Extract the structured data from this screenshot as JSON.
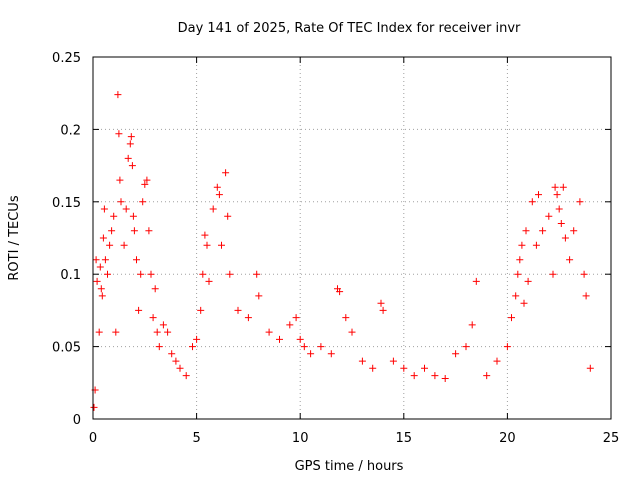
{
  "chart_data": {
    "type": "scatter",
    "title": "Day 141 of 2025, Rate Of TEC Index for receiver invr",
    "xlabel": "GPS time / hours",
    "ylabel": "ROTI / TECUs",
    "xlim": [
      0,
      25
    ],
    "ylim": [
      0,
      0.25
    ],
    "xticks": [
      "0",
      "5",
      "10",
      "15",
      "20",
      "25"
    ],
    "yticks": [
      "0",
      "0.05",
      "0.1",
      "0.15",
      "0.2",
      "0.25"
    ],
    "grid": true,
    "marker": "plus",
    "color": "#ff0000",
    "series": [
      {
        "name": "ROTI",
        "x": [
          0.05,
          0.1,
          0.15,
          0.2,
          0.3,
          0.35,
          0.4,
          0.45,
          0.5,
          0.55,
          0.6,
          0.7,
          0.8,
          0.9,
          1.0,
          1.1,
          1.2,
          1.25,
          1.3,
          1.35,
          1.5,
          1.6,
          1.7,
          1.8,
          1.85,
          1.9,
          1.95,
          2.0,
          2.1,
          2.2,
          2.3,
          2.4,
          2.5,
          2.6,
          2.7,
          2.8,
          2.9,
          3.0,
          3.1,
          3.2,
          3.4,
          3.6,
          3.8,
          4.0,
          4.2,
          4.5,
          4.8,
          5.0,
          5.2,
          5.3,
          5.4,
          5.5,
          5.6,
          5.8,
          6.0,
          6.1,
          6.2,
          6.4,
          6.5,
          6.6,
          7.0,
          7.5,
          7.9,
          8.0,
          8.5,
          9.0,
          9.5,
          9.8,
          10.0,
          10.2,
          10.5,
          11.0,
          11.5,
          11.8,
          11.9,
          12.2,
          12.5,
          13.0,
          13.5,
          13.9,
          14.0,
          14.5,
          15.0,
          15.5,
          16.0,
          16.5,
          17.0,
          17.5,
          18.0,
          18.3,
          18.5,
          19.0,
          19.5,
          20.0,
          20.2,
          20.4,
          20.5,
          20.6,
          20.7,
          20.8,
          20.9,
          21.0,
          21.2,
          21.4,
          21.5,
          21.7,
          22.0,
          22.2,
          22.3,
          22.4,
          22.5,
          22.6,
          22.7,
          22.8,
          23.0,
          23.2,
          23.5,
          23.7,
          23.8,
          24.0
        ],
        "y": [
          0.008,
          0.02,
          0.11,
          0.095,
          0.06,
          0.105,
          0.09,
          0.085,
          0.125,
          0.145,
          0.11,
          0.1,
          0.12,
          0.13,
          0.14,
          0.06,
          0.224,
          0.197,
          0.165,
          0.15,
          0.12,
          0.145,
          0.18,
          0.19,
          0.195,
          0.175,
          0.14,
          0.13,
          0.11,
          0.075,
          0.1,
          0.15,
          0.162,
          0.165,
          0.13,
          0.1,
          0.07,
          0.09,
          0.06,
          0.05,
          0.065,
          0.06,
          0.045,
          0.04,
          0.035,
          0.03,
          0.05,
          0.055,
          0.075,
          0.1,
          0.127,
          0.12,
          0.095,
          0.145,
          0.16,
          0.155,
          0.12,
          0.17,
          0.14,
          0.1,
          0.075,
          0.07,
          0.1,
          0.085,
          0.06,
          0.055,
          0.065,
          0.07,
          0.055,
          0.05,
          0.045,
          0.05,
          0.045,
          0.09,
          0.088,
          0.07,
          0.06,
          0.04,
          0.035,
          0.08,
          0.075,
          0.04,
          0.035,
          0.03,
          0.035,
          0.03,
          0.028,
          0.045,
          0.05,
          0.065,
          0.095,
          0.03,
          0.04,
          0.05,
          0.07,
          0.085,
          0.1,
          0.11,
          0.12,
          0.08,
          0.13,
          0.095,
          0.15,
          0.12,
          0.155,
          0.13,
          0.14,
          0.1,
          0.16,
          0.155,
          0.145,
          0.135,
          0.16,
          0.125,
          0.11,
          0.13,
          0.15,
          0.1,
          0.085,
          0.035
        ]
      }
    ]
  }
}
